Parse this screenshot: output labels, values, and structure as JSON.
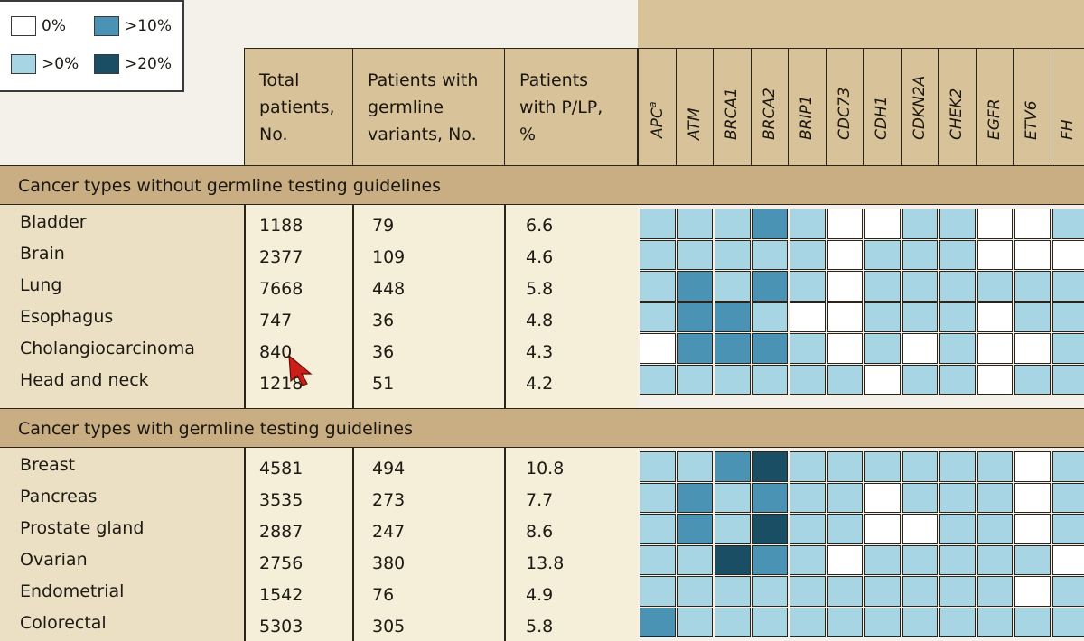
{
  "legend": {
    "items": [
      {
        "label": "0%",
        "color": "#ffffff"
      },
      {
        "label": ">10%",
        "color": "#4a93b4"
      },
      {
        "label": ">0%",
        "color": "#a7d5e3"
      },
      {
        "label": ">20%",
        "color": "#1a4e64"
      }
    ]
  },
  "headers": {
    "total": "Total\npatients,\nNo.",
    "germline": "Patients with\ngermline\nvariants, No.",
    "plp": "Patients\nwith P/LP,\n%"
  },
  "sections": [
    {
      "title": "Cancer types without germline testing guidelines",
      "rows": [
        {
          "name": "Bladder",
          "total": "1188",
          "germline": "79",
          "plp": "6.6"
        },
        {
          "name": "Brain",
          "total": "2377",
          "germline": "109",
          "plp": "4.6"
        },
        {
          "name": "Lung",
          "total": "7668",
          "germline": "448",
          "plp": "5.8"
        },
        {
          "name": "Esophagus",
          "total": "747",
          "germline": "36",
          "plp": "4.8"
        },
        {
          "name": "Cholangiocarcinoma",
          "total": "840",
          "germline": "36",
          "plp": "4.3"
        },
        {
          "name": "Head and neck",
          "total": "1218",
          "germline": "51",
          "plp": "4.2"
        }
      ]
    },
    {
      "title": "Cancer types with germline testing guidelines",
      "rows": [
        {
          "name": "Breast",
          "total": "4581",
          "germline": "494",
          "plp": "10.8"
        },
        {
          "name": "Pancreas",
          "total": "3535",
          "germline": "273",
          "plp": "7.7"
        },
        {
          "name": "Prostate gland",
          "total": "2887",
          "germline": "247",
          "plp": "8.6"
        },
        {
          "name": "Ovarian",
          "total": "2756",
          "germline": "380",
          "plp": "13.8"
        },
        {
          "name": "Endometrial",
          "total": "1542",
          "germline": "76",
          "plp": "4.9"
        },
        {
          "name": "Colorectal",
          "total": "5303",
          "germline": "305",
          "plp": "5.8"
        }
      ]
    }
  ],
  "chart_data": {
    "type": "heatmap",
    "genes": [
      "APC",
      "ATM",
      "BRCA1",
      "BRCA2",
      "BRIP1",
      "CDC73",
      "CDH1",
      "CDKN2A",
      "CHEK2",
      "EGFR",
      "ETV6",
      "FH"
    ],
    "gene_superscripts": {
      "APC": "a"
    },
    "levels": [
      "0%",
      ">0%",
      ">10%",
      ">20%"
    ],
    "level_colors": [
      "#ffffff",
      "#a7d5e3",
      "#4a93b4",
      "#1a4e64"
    ],
    "row_labels": [
      "Bladder",
      "Brain",
      "Lung",
      "Esophagus",
      "Cholangiocarcinoma",
      "Head and neck",
      "Breast",
      "Pancreas",
      "Prostate gland",
      "Ovarian",
      "Endometrial",
      "Colorectal"
    ],
    "matrix": [
      [
        1,
        1,
        1,
        2,
        1,
        0,
        0,
        1,
        1,
        0,
        0,
        1
      ],
      [
        1,
        1,
        1,
        1,
        1,
        0,
        1,
        1,
        1,
        0,
        0,
        0
      ],
      [
        1,
        2,
        1,
        2,
        1,
        0,
        1,
        1,
        1,
        1,
        1,
        1
      ],
      [
        1,
        2,
        2,
        1,
        0,
        0,
        1,
        1,
        1,
        0,
        1,
        1
      ],
      [
        0,
        2,
        2,
        2,
        1,
        0,
        1,
        0,
        1,
        0,
        0,
        1
      ],
      [
        1,
        1,
        1,
        1,
        1,
        1,
        0,
        1,
        1,
        0,
        1,
        1
      ],
      [
        1,
        1,
        2,
        3,
        1,
        1,
        1,
        1,
        1,
        1,
        0,
        1
      ],
      [
        1,
        2,
        1,
        2,
        1,
        1,
        0,
        1,
        1,
        1,
        0,
        1
      ],
      [
        1,
        2,
        1,
        3,
        1,
        1,
        0,
        0,
        1,
        1,
        0,
        1
      ],
      [
        1,
        1,
        3,
        2,
        1,
        0,
        1,
        1,
        1,
        1,
        1,
        0
      ],
      [
        1,
        1,
        1,
        1,
        1,
        1,
        1,
        1,
        1,
        1,
        0,
        1
      ],
      [
        2,
        1,
        1,
        1,
        1,
        1,
        1,
        1,
        1,
        1,
        1,
        1
      ]
    ]
  }
}
